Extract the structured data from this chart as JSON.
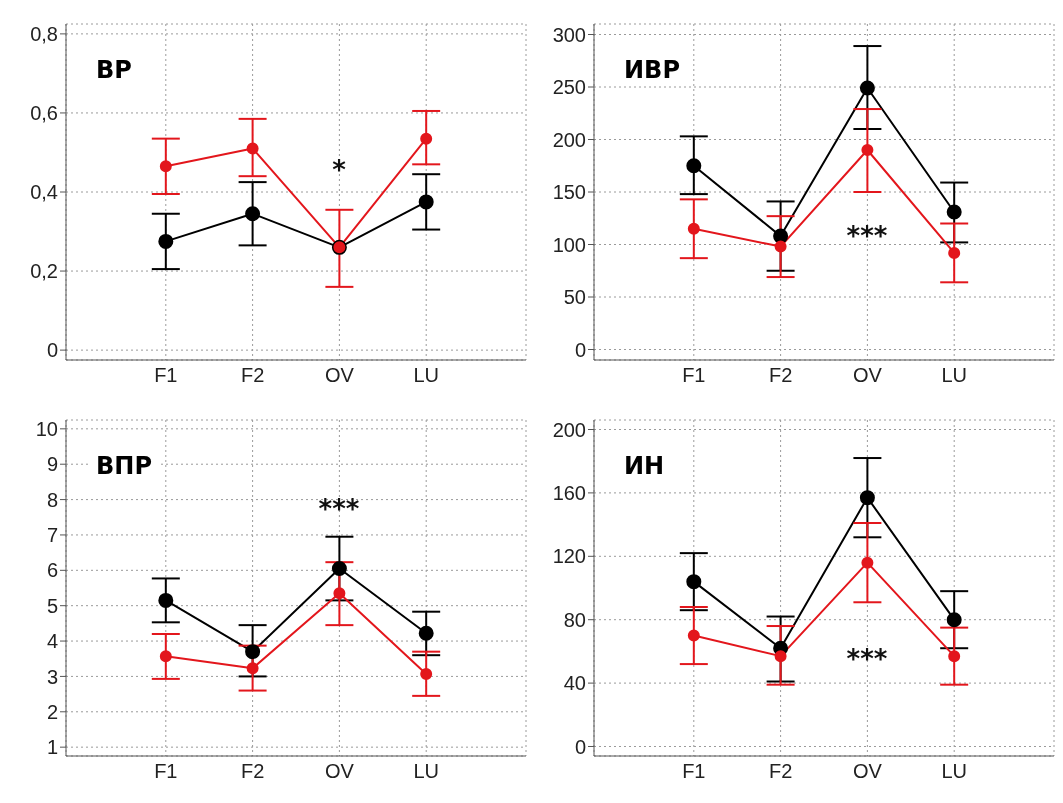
{
  "chart_data": [
    {
      "type": "line",
      "title": "ВР",
      "categories": [
        "F1",
        "F2",
        "OV",
        "LU"
      ],
      "ylim": [
        -0.025,
        0.825
      ],
      "yticks": [
        0,
        {
          "value": 0.2,
          "label": "0,2"
        },
        {
          "value": 0.4,
          "label": "0,4"
        },
        {
          "value": 0.6,
          "label": "0,6"
        },
        {
          "value": 0.8,
          "label": "0,8"
        }
      ],
      "grid": true,
      "marker": "circle",
      "line_style": "solid",
      "series": [
        {
          "color": "#000000",
          "values": [
            0.275,
            0.345,
            0.26,
            0.375
          ],
          "errors": [
            [
              0.205,
              0.345
            ],
            [
              0.265,
              0.425
            ],
            null,
            [
              0.305,
              0.445
            ]
          ]
        },
        {
          "color": "#e3161c",
          "values": [
            0.465,
            0.51,
            0.26,
            0.535
          ],
          "errors": [
            [
              0.395,
              0.535
            ],
            [
              0.44,
              0.585
            ],
            [
              0.16,
              0.355
            ],
            [
              0.47,
              0.605
            ]
          ]
        }
      ],
      "annotations": [
        "*"
      ]
    },
    {
      "type": "line",
      "title": "ИВР",
      "categories": [
        "F1",
        "F2",
        "OV",
        "LU"
      ],
      "ylim": [
        -10,
        310
      ],
      "yticks": [
        0,
        50,
        100,
        150,
        200,
        250,
        300
      ],
      "grid": true,
      "marker": "circle",
      "line_style": "solid",
      "series": [
        {
          "color": "#000000",
          "values": [
            175,
            108,
            249,
            131
          ],
          "errors": [
            [
              148,
              203
            ],
            [
              75,
              141
            ],
            [
              210,
              289
            ],
            [
              102,
              159
            ]
          ]
        },
        {
          "color": "#e3161c",
          "values": [
            115,
            98,
            190,
            92
          ],
          "errors": [
            [
              87,
              143
            ],
            [
              69,
              127
            ],
            [
              150,
              229
            ],
            [
              64,
              120
            ]
          ]
        }
      ],
      "annotations": [
        "***"
      ]
    },
    {
      "type": "line",
      "title": "ВПР",
      "categories": [
        "F1",
        "F2",
        "OV",
        "LU"
      ],
      "ylim": [
        0.75,
        10.25
      ],
      "yticks": [
        1,
        2,
        3,
        4,
        5,
        6,
        7,
        8,
        9,
        10
      ],
      "grid": true,
      "marker": "circle",
      "line_style": "solid",
      "series": [
        {
          "color": "#000000",
          "values": [
            5.15,
            3.7,
            6.05,
            4.22
          ],
          "errors": [
            [
              4.53,
              5.77
            ],
            [
              3.0,
              4.45
            ],
            [
              5.15,
              6.95
            ],
            [
              3.6,
              4.83
            ]
          ]
        },
        {
          "color": "#e3161c",
          "values": [
            3.57,
            3.23,
            5.35,
            3.07
          ],
          "errors": [
            [
              2.93,
              4.2
            ],
            [
              2.6,
              3.87
            ],
            [
              4.45,
              6.23
            ],
            [
              2.45,
              3.7
            ]
          ]
        }
      ],
      "annotations": [
        "***"
      ]
    },
    {
      "type": "line",
      "title": "ИН",
      "categories": [
        "F1",
        "F2",
        "OV",
        "LU"
      ],
      "ylim": [
        -6,
        206
      ],
      "yticks": [
        0,
        40,
        80,
        120,
        160,
        200
      ],
      "grid": true,
      "marker": "circle",
      "line_style": "solid",
      "series": [
        {
          "color": "#000000",
          "values": [
            104,
            62,
            157,
            80
          ],
          "errors": [
            [
              86,
              122
            ],
            [
              41,
              82
            ],
            [
              132,
              182
            ],
            [
              62,
              98
            ]
          ]
        },
        {
          "color": "#e3161c",
          "values": [
            70,
            57,
            116,
            57
          ],
          "errors": [
            [
              52,
              88
            ],
            [
              39,
              76
            ],
            [
              91,
              141
            ],
            [
              39,
              75
            ]
          ]
        }
      ],
      "annotations": [
        "***"
      ]
    }
  ]
}
